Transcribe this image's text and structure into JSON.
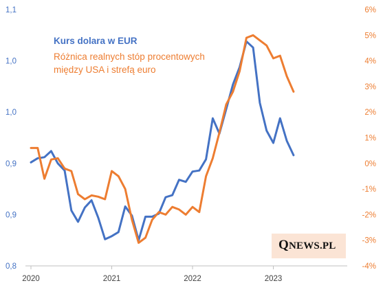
{
  "chart_data": {
    "type": "line",
    "title": "",
    "legend": {
      "placement": "top-left",
      "entries": [
        "Kurs dolara  w EUR",
        "Różnica realnych stóp procentowych między USA i strefą euro"
      ]
    },
    "x_ticks": [
      "2020",
      "2021",
      "2022",
      "2023"
    ],
    "y_left_ticks": [
      "1,1",
      "1,0",
      "1,0",
      "0,9",
      "0,9",
      "0,8"
    ],
    "y_left_tick_values": [
      1.1,
      1.05,
      1.0,
      0.95,
      0.9,
      0.85
    ],
    "y_left_range": [
      0.85,
      1.1
    ],
    "y_right_ticks": [
      "6%",
      "5%",
      "4%",
      "3%",
      "2%",
      "1%",
      "0%",
      "-1%",
      "-2%",
      "-3%",
      "-4%"
    ],
    "y_right_tick_values": [
      6,
      5,
      4,
      3,
      2,
      1,
      0,
      -1,
      -2,
      -3,
      -4
    ],
    "y_right_range": [
      -4,
      6
    ],
    "x_range": [
      2020.0,
      2023.75
    ],
    "grid": false,
    "series": [
      {
        "name": "Kurs dolara  w EUR",
        "axis": "left",
        "color": "#4472c4",
        "x": [
          2020.0,
          2020.083,
          2020.167,
          2020.25,
          2020.333,
          2020.417,
          2020.5,
          2020.583,
          2020.667,
          2020.75,
          2020.833,
          2020.917,
          2021.0,
          2021.083,
          2021.167,
          2021.25,
          2021.333,
          2021.417,
          2021.5,
          2021.583,
          2021.667,
          2021.75,
          2021.833,
          2021.917,
          2022.0,
          2022.083,
          2022.167,
          2022.25,
          2022.333,
          2022.417,
          2022.5,
          2022.583,
          2022.667,
          2022.75,
          2022.833,
          2022.917,
          2023.0,
          2023.083,
          2023.167,
          2023.25
        ],
        "values": [
          0.951,
          0.955,
          0.956,
          0.962,
          0.95,
          0.943,
          0.904,
          0.893,
          0.907,
          0.914,
          0.897,
          0.876,
          0.879,
          0.883,
          0.908,
          0.899,
          0.875,
          0.898,
          0.898,
          0.901,
          0.917,
          0.919,
          0.934,
          0.932,
          0.942,
          0.943,
          0.954,
          0.994,
          0.979,
          1.003,
          1.027,
          1.044,
          1.069,
          1.063,
          1.009,
          0.982,
          0.97,
          0.994,
          0.972,
          0.958
        ]
      },
      {
        "name": "Różnica realnych stóp procentowych między USA i strefą euro",
        "axis": "right",
        "color": "#ed7d31",
        "x": [
          2020.0,
          2020.083,
          2020.167,
          2020.25,
          2020.333,
          2020.417,
          2020.5,
          2020.583,
          2020.667,
          2020.75,
          2020.833,
          2020.917,
          2021.0,
          2021.083,
          2021.167,
          2021.25,
          2021.333,
          2021.417,
          2021.5,
          2021.583,
          2021.667,
          2021.75,
          2021.833,
          2021.917,
          2022.0,
          2022.083,
          2022.167,
          2022.25,
          2022.333,
          2022.417,
          2022.5,
          2022.583,
          2022.667,
          2022.75,
          2022.833,
          2022.917,
          2023.0,
          2023.083,
          2023.167,
          2023.25
        ],
        "values": [
          0.6,
          0.6,
          -0.6,
          0.15,
          0.2,
          -0.2,
          -0.3,
          -1.2,
          -1.4,
          -1.25,
          -1.3,
          -1.4,
          -0.3,
          -0.5,
          -1.0,
          -2.2,
          -3.1,
          -2.9,
          -2.2,
          -1.9,
          -2.0,
          -1.7,
          -1.8,
          -2.0,
          -1.7,
          -1.9,
          -0.5,
          0.2,
          1.2,
          2.3,
          2.8,
          3.6,
          4.9,
          5.0,
          4.8,
          4.6,
          4.1,
          4.2,
          3.4,
          2.8
        ]
      }
    ]
  },
  "watermark": {
    "q": "Q",
    "rest": "NEWS.PL"
  }
}
